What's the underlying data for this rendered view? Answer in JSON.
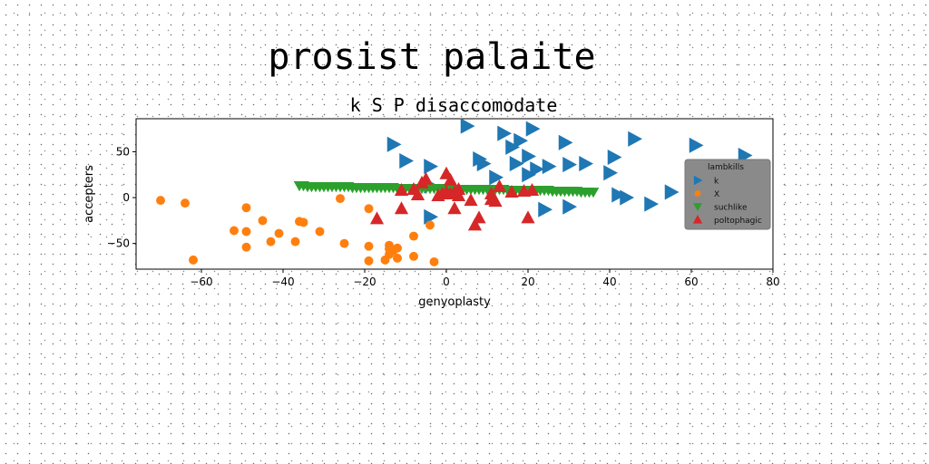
{
  "figure_title": "prosist palaite",
  "chart_data": {
    "type": "scatter",
    "title": "k S P disaccomodate",
    "xlabel": "genyoplasty",
    "ylabel": "accepters",
    "xlim": [
      -76,
      80
    ],
    "ylim": [
      -78,
      86
    ],
    "xticks": [
      -60,
      -40,
      -20,
      0,
      20,
      40,
      60,
      80
    ],
    "yticks": [
      -50,
      0,
      50
    ],
    "legend": {
      "title": "lambkills",
      "placement": "right"
    },
    "series": [
      {
        "name": "k",
        "marker": "triangle-right",
        "color": "#1f77b4",
        "points": [
          [
            5,
            78
          ],
          [
            21,
            75
          ],
          [
            14,
            70
          ],
          [
            46,
            64
          ],
          [
            18,
            62
          ],
          [
            29,
            60
          ],
          [
            -13,
            58
          ],
          [
            16,
            55
          ],
          [
            61,
            57
          ],
          [
            73,
            46
          ],
          [
            -10,
            40
          ],
          [
            8,
            42
          ],
          [
            20,
            45
          ],
          [
            41,
            44
          ],
          [
            34,
            37
          ],
          [
            9,
            37
          ],
          [
            17,
            37
          ],
          [
            -4,
            34
          ],
          [
            25,
            34
          ],
          [
            30,
            36
          ],
          [
            22,
            31
          ],
          [
            40,
            27
          ],
          [
            20,
            25
          ],
          [
            12,
            22
          ],
          [
            -4,
            13
          ],
          [
            75,
            30
          ],
          [
            61,
            3
          ],
          [
            55,
            6
          ],
          [
            44,
            0
          ],
          [
            42,
            3
          ],
          [
            50,
            -7
          ],
          [
            30,
            -10
          ],
          [
            24,
            -13
          ],
          [
            -4,
            -21
          ]
        ]
      },
      {
        "name": "X",
        "marker": "circle",
        "color": "#ff7f0e",
        "points": [
          [
            -70,
            -3
          ],
          [
            -64,
            -6
          ],
          [
            -62,
            -68
          ],
          [
            -49,
            -11
          ],
          [
            -45,
            -25
          ],
          [
            -52,
            -36
          ],
          [
            -49,
            -37
          ],
          [
            -41,
            -39
          ],
          [
            -49,
            -54
          ],
          [
            -43,
            -48
          ],
          [
            -36,
            -26
          ],
          [
            -35,
            -27
          ],
          [
            -37,
            -48
          ],
          [
            -31,
            -37
          ],
          [
            -26,
            -1
          ],
          [
            -19,
            -12
          ],
          [
            -25,
            -50
          ],
          [
            -19,
            -53
          ],
          [
            -19,
            -69
          ],
          [
            -15,
            -68
          ],
          [
            -14,
            -62
          ],
          [
            -14,
            -52
          ],
          [
            -14,
            -56
          ],
          [
            -13,
            -58
          ],
          [
            -12,
            -66
          ],
          [
            -12,
            -55
          ],
          [
            -8,
            -42
          ],
          [
            -8,
            -64
          ],
          [
            -4,
            -30
          ],
          [
            -3,
            -70
          ]
        ]
      },
      {
        "name": "suchlike",
        "marker": "triangle-down",
        "color": "#2ca02c",
        "points": [
          [
            -36,
            13
          ],
          [
            -35,
            13
          ],
          [
            -34,
            12
          ],
          [
            -33,
            12
          ],
          [
            -32,
            12
          ],
          [
            -31,
            12
          ],
          [
            -30,
            12
          ],
          [
            -29,
            12
          ],
          [
            -28,
            12
          ],
          [
            -27,
            12
          ],
          [
            -26,
            12
          ],
          [
            -25,
            12
          ],
          [
            -24,
            12
          ],
          [
            -23,
            11
          ],
          [
            -22,
            11
          ],
          [
            -21,
            11
          ],
          [
            -20,
            11
          ],
          [
            -19,
            11
          ],
          [
            -18,
            11
          ],
          [
            -17,
            11
          ],
          [
            -16,
            11
          ],
          [
            -15,
            11
          ],
          [
            -14,
            11
          ],
          [
            -13,
            11
          ],
          [
            -12,
            10
          ],
          [
            -11,
            10
          ],
          [
            -10,
            10
          ],
          [
            -9,
            10
          ],
          [
            -8,
            10
          ],
          [
            -7,
            10
          ],
          [
            -6,
            10
          ],
          [
            -5,
            10
          ],
          [
            -4,
            10
          ],
          [
            -3,
            10
          ],
          [
            -2,
            10
          ],
          [
            -1,
            10
          ],
          [
            0,
            10
          ],
          [
            1,
            10
          ],
          [
            2,
            9
          ],
          [
            3,
            9
          ],
          [
            4,
            9
          ],
          [
            5,
            9
          ],
          [
            6,
            9
          ],
          [
            7,
            9
          ],
          [
            8,
            9
          ],
          [
            9,
            9
          ],
          [
            10,
            9
          ],
          [
            11,
            9
          ],
          [
            12,
            9
          ],
          [
            13,
            9
          ],
          [
            14,
            9
          ],
          [
            15,
            8
          ],
          [
            16,
            8
          ],
          [
            17,
            8
          ],
          [
            18,
            8
          ],
          [
            19,
            8
          ],
          [
            20,
            8
          ],
          [
            21,
            8
          ],
          [
            22,
            8
          ],
          [
            23,
            8
          ],
          [
            24,
            8
          ],
          [
            25,
            8
          ],
          [
            26,
            7
          ],
          [
            27,
            7
          ],
          [
            28,
            7
          ],
          [
            29,
            7
          ],
          [
            30,
            7
          ],
          [
            31,
            7
          ],
          [
            32,
            7
          ],
          [
            33,
            6
          ],
          [
            34,
            6
          ],
          [
            35,
            6
          ],
          [
            36,
            6
          ]
        ]
      },
      {
        "name": "poltophagic",
        "marker": "triangle-up",
        "color": "#d62728",
        "points": [
          [
            -17,
            -23
          ],
          [
            -11,
            -12
          ],
          [
            -11,
            8
          ],
          [
            -8,
            9
          ],
          [
            -6,
            16
          ],
          [
            -5,
            20
          ],
          [
            -7,
            3
          ],
          [
            -2,
            2
          ],
          [
            -1,
            4
          ],
          [
            0,
            26
          ],
          [
            1,
            19
          ],
          [
            1,
            4
          ],
          [
            2,
            -12
          ],
          [
            3,
            9
          ],
          [
            3,
            2
          ],
          [
            7,
            -30
          ],
          [
            8,
            -22
          ],
          [
            11,
            -2
          ],
          [
            11,
            4
          ],
          [
            12,
            -4
          ],
          [
            13,
            12
          ],
          [
            16,
            6
          ],
          [
            19,
            7
          ],
          [
            21,
            8
          ],
          [
            20,
            -22
          ],
          [
            6,
            -3
          ],
          [
            0,
            6
          ],
          [
            2,
            6
          ]
        ]
      }
    ]
  }
}
